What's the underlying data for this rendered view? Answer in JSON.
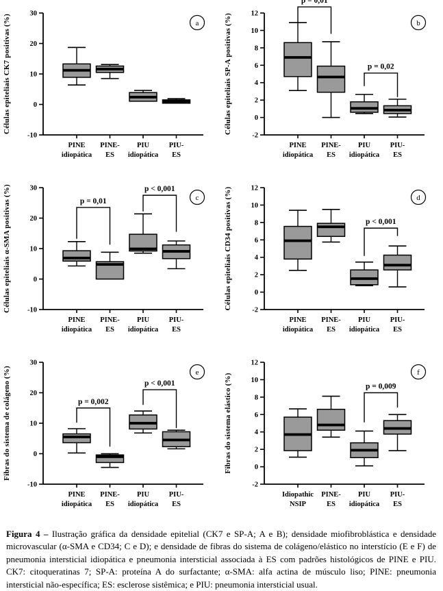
{
  "figure": {
    "caption_label": "Figura 4 – ",
    "caption_text": "Ilustração gráfica da densidade epitelial (CK7 e SP-A; A e B); densidade miofibroblástica e densidade microvascular (α-SMA e CD34; C e D); e densidade de fibras do sistema de colágeno/elástico no interstício (E e F) de pneumonia intersticial idiopática e pneumonia intersticial associada à ES com padrões histológicos de PINE e PIU. CK7: citoqueratinas 7; SP-A: proteína A do surfactante; α-SMA: alfa actina de músculo liso; PINE: pneumonia intersticial não-específica; ES: esclerose sistêmica; e PIU: pneumonia intersticial usual."
  },
  "colors": {
    "box_fill": "#9a9a9a",
    "ink": "#000000",
    "background": "#ffffff"
  },
  "chart_data": [
    {
      "panel": "a",
      "type": "boxplot",
      "ylabel": "Células epiteliais CK7 positivas (%)",
      "ylim": [
        -10,
        30
      ],
      "yticks": [
        30,
        20,
        10,
        0,
        -10
      ],
      "categories": [
        [
          "PINE",
          "idiopática"
        ],
        [
          "PINE-",
          "ES"
        ],
        [
          "PIU",
          "idiopática"
        ],
        [
          "PIU-",
          "ES"
        ]
      ],
      "boxes": [
        {
          "low": 6.4,
          "q1": 8.9,
          "median": 11.2,
          "q3": 13.3,
          "high": 18.7
        },
        {
          "low": 8.5,
          "q1": 10.5,
          "median": 11.6,
          "q3": 12.6,
          "high": 13.1
        },
        {
          "low": 1.05,
          "q1": 1.05,
          "median": 2.4,
          "q3": 3.9,
          "high": 4.6
        },
        {
          "low": 0.4,
          "q1": 0.4,
          "median": 1.0,
          "q3": 1.5,
          "high": 1.9
        }
      ],
      "annotations": []
    },
    {
      "panel": "b",
      "type": "boxplot",
      "ylabel": "Células epiteliais SP-A positivas (%)",
      "ylim": [
        -2,
        12
      ],
      "yticks": [
        12,
        10,
        8,
        6,
        4,
        2,
        0,
        -2
      ],
      "categories": [
        [
          "PINE",
          "idiopática"
        ],
        [
          "PINE-",
          "ES"
        ],
        [
          "PIU",
          "idiopática"
        ],
        [
          "PIU-",
          "ES"
        ]
      ],
      "boxes": [
        {
          "low": 3.1,
          "q1": 4.7,
          "median": 6.9,
          "q3": 8.6,
          "high": 10.9
        },
        {
          "low": 0.0,
          "q1": 2.9,
          "median": 4.65,
          "q3": 5.9,
          "high": 8.7
        },
        {
          "low": 0.45,
          "q1": 0.6,
          "median": 1.05,
          "q3": 1.8,
          "high": 2.65
        },
        {
          "low": 0.05,
          "q1": 0.45,
          "median": 0.85,
          "q3": 1.35,
          "high": 2.1
        }
      ],
      "annotations": [
        {
          "label": "p = 0,01",
          "from": 0,
          "to": 1,
          "y_from": 10.95,
          "y_top": 12.7,
          "y_to": 9.6
        },
        {
          "label": "p = 0,02",
          "from": 2,
          "to": 3,
          "y_from": 3.6,
          "y_top": 5.1,
          "y_to": 2.35
        }
      ]
    },
    {
      "panel": "c",
      "type": "boxplot",
      "ylabel": "Células epiteliais α-SMA positivas (%)",
      "ylim": [
        -10,
        30
      ],
      "yticks": [
        30,
        20,
        10,
        0,
        -10
      ],
      "categories": [
        [
          "PINE",
          "idiopática"
        ],
        [
          "PINE-",
          "ES"
        ],
        [
          "PIU",
          "idiopática"
        ],
        [
          "PIU-",
          "ES"
        ]
      ],
      "boxes": [
        {
          "low": 4.3,
          "q1": 5.9,
          "median": 6.9,
          "q3": 9.3,
          "high": 12.3
        },
        {
          "low": 0.0,
          "q1": 0.0,
          "median": 4.8,
          "q3": 5.7,
          "high": 8.8
        },
        {
          "low": 8.5,
          "q1": 9.2,
          "median": 9.9,
          "q3": 14.7,
          "high": 21.4
        },
        {
          "low": 3.4,
          "q1": 6.7,
          "median": 9.1,
          "q3": 11.2,
          "high": 12.5
        }
      ],
      "annotations": [
        {
          "label": "p = 0,01",
          "from": 0,
          "to": 1,
          "y_from": 13.2,
          "y_top": 23.5,
          "y_to": 11.3
        },
        {
          "label": "p < 0,001",
          "from": 2,
          "to": 3,
          "y_from": 22.2,
          "y_top": 27.5,
          "y_to": 15.5
        }
      ]
    },
    {
      "panel": "d",
      "type": "boxplot",
      "ylabel": "Células epiteliais CD34 positivas (%)",
      "ylim": [
        -2,
        12
      ],
      "yticks": [
        12,
        10,
        8,
        6,
        4,
        2,
        0,
        -2
      ],
      "categories": [
        [
          "PINE",
          "idiopática"
        ],
        [
          "PINE-",
          "ES"
        ],
        [
          "PIU",
          "idiopática"
        ],
        [
          "PIU-",
          "ES"
        ]
      ],
      "boxes": [
        {
          "low": 2.5,
          "q1": 3.8,
          "median": 5.9,
          "q3": 7.55,
          "high": 9.4
        },
        {
          "low": 5.75,
          "q1": 6.4,
          "median": 7.5,
          "q3": 7.9,
          "high": 9.5
        },
        {
          "low": 0.75,
          "q1": 0.85,
          "median": 1.55,
          "q3": 2.55,
          "high": 3.45
        },
        {
          "low": 0.6,
          "q1": 2.55,
          "median": 3.1,
          "q3": 4.25,
          "high": 5.3
        }
      ],
      "annotations": [
        {
          "label": "p < 0,001",
          "from": 2,
          "to": 3,
          "y_from": 4.15,
          "y_top": 7.35,
          "y_to": 6.45
        }
      ]
    },
    {
      "panel": "e",
      "type": "boxplot",
      "ylabel": "Fibras do sistema de colágeno (%)",
      "ylim": [
        -10,
        30
      ],
      "yticks": [
        30,
        20,
        10,
        0,
        -10
      ],
      "categories": [
        [
          "PINE",
          "idiopática"
        ],
        [
          "PINE-",
          "ES"
        ],
        [
          "PIU",
          "idiopática"
        ],
        [
          "PIU-",
          "ES"
        ]
      ],
      "boxes": [
        {
          "low": 0.25,
          "q1": 3.6,
          "median": 5.5,
          "q3": 6.5,
          "high": 8.2
        },
        {
          "low": -4.5,
          "q1": -2.9,
          "median": -1.0,
          "q3": -0.4,
          "high": 0.0
        },
        {
          "low": 6.8,
          "q1": 8.1,
          "median": 10.0,
          "q3": 12.7,
          "high": 14.0
        },
        {
          "low": 1.6,
          "q1": 2.3,
          "median": 4.5,
          "q3": 7.2,
          "high": 7.7
        }
      ],
      "annotations": [
        {
          "label": "p = 0,002",
          "from": 0,
          "to": 1,
          "y_from": 10.2,
          "y_top": 15.0,
          "y_to": 2.3
        },
        {
          "label": "p < 0,001",
          "from": 2,
          "to": 3,
          "y_from": 16.0,
          "y_top": 21.0,
          "y_to": 8.4
        }
      ]
    },
    {
      "panel": "f",
      "type": "boxplot",
      "ylabel": "Fibras do sistema elástico (%)",
      "ylim": [
        -2,
        12
      ],
      "yticks": [
        12,
        10,
        8,
        6,
        4,
        2,
        0,
        -2
      ],
      "categories": [
        [
          "Idiopathic",
          "NSIP"
        ],
        [
          "PINE-",
          "ES"
        ],
        [
          "PIU",
          "idiopática"
        ],
        [
          "PIU-",
          "ES"
        ]
      ],
      "boxes": [
        {
          "low": 1.1,
          "q1": 1.85,
          "median": 3.7,
          "q3": 5.7,
          "high": 6.65
        },
        {
          "low": 3.4,
          "q1": 4.2,
          "median": 4.8,
          "q3": 6.6,
          "high": 8.1
        },
        {
          "low": 0.1,
          "q1": 1.05,
          "median": 1.9,
          "q3": 2.75,
          "high": 4.1
        },
        {
          "low": 1.85,
          "q1": 3.75,
          "median": 4.4,
          "q3": 5.3,
          "high": 6.0
        }
      ],
      "annotations": [
        {
          "label": "p = 0,009",
          "from": 2,
          "to": 3,
          "y_from": 5.1,
          "y_top": 8.5,
          "y_to": 6.8
        }
      ]
    }
  ]
}
